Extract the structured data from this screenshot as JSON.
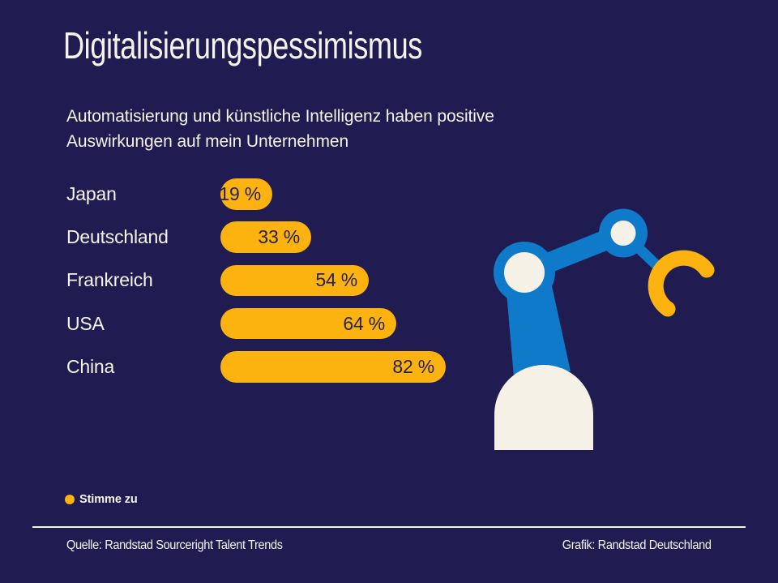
{
  "title": "Digitalisierungspessimismus",
  "subtitle": {
    "line1": "Automatisierung und künstliche Intelligenz haben positive",
    "line2": "Auswirkungen auf mein Unternehmen"
  },
  "chart_data": {
    "type": "bar",
    "orientation": "horizontal",
    "categories": [
      "Japan",
      "Deutschland",
      "Frankreich",
      "USA",
      "China"
    ],
    "values": [
      19,
      33,
      54,
      64,
      82
    ],
    "value_labels": [
      "19 %",
      "33 %",
      "54 %",
      "64 %",
      "82 %"
    ],
    "series_name": "Stimme zu",
    "unit": "%",
    "xlim": [
      0,
      100
    ],
    "grid": false,
    "legend_position": "bottom-left",
    "bar_color": "#fcb30f",
    "bar_label_color": "#262254"
  },
  "legend": {
    "dot_icon": "circle",
    "dot_color": "#fcb30f",
    "label": "Stimme zu"
  },
  "footer": {
    "source": "Quelle: Randstad Sourceright Talent Trends",
    "credit": "Grafik: Randstad Deutschland"
  },
  "illustration": {
    "name": "robot-arm",
    "colors": {
      "arm_blue": "#0f7ac9",
      "base_cream": "#f5f1e6",
      "gripper_yellow": "#fcb30f"
    }
  },
  "colors": {
    "background": "#201c52",
    "text": "#f6f3ec",
    "divider": "#f6f3ec"
  }
}
